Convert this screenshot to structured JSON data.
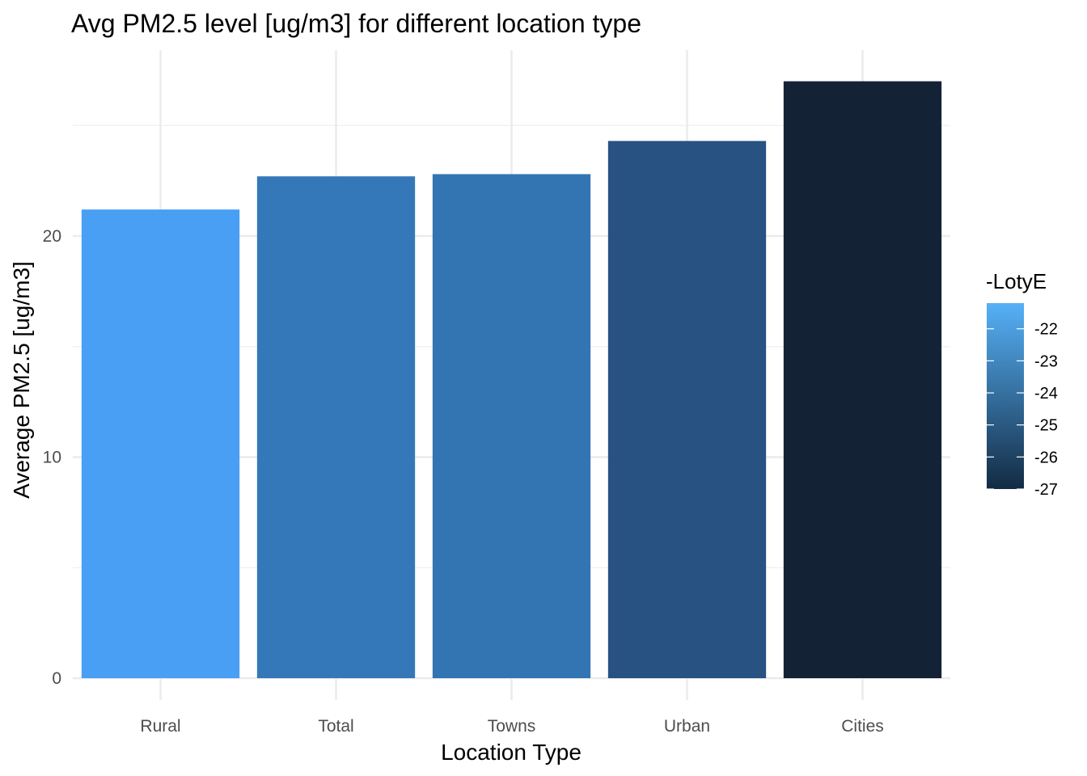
{
  "chart_data": {
    "type": "bar",
    "title": "Avg PM2.5 level [ug/m3] for different location type",
    "xlabel": "Location Type",
    "ylabel": "Average PM2.5 [ug/m3]",
    "categories": [
      "Rural",
      "Total",
      "Towns",
      "Urban",
      "Cities"
    ],
    "values": [
      21.2,
      22.7,
      22.8,
      24.3,
      27.0
    ],
    "ylim": [
      0,
      28.2
    ],
    "yticks": [
      0,
      10,
      20
    ],
    "ytick_labels": [
      "0",
      "10",
      "20"
    ],
    "grid": true,
    "legend": {
      "title": "-LotyE",
      "position": "right",
      "type": "colorbar",
      "range": [
        -27,
        -21.2
      ],
      "ticks": [
        -22,
        -23,
        -24,
        -25,
        -26,
        -27
      ],
      "tick_labels": [
        "-22",
        "-23",
        "-24",
        "-25",
        "-26",
        "-27"
      ],
      "color_low_value": "#132B43",
      "color_high_value": "#56B1F7"
    },
    "bar_colors": [
      "#489ff4",
      "#3578b9",
      "#3375b2",
      "#275282",
      "#132235"
    ],
    "colors": {
      "background": "#ffffff",
      "grid_major": "#ebebeb",
      "grid_minor": "#f2f2f2",
      "tick_text": "#4d4d4d",
      "text": "#000000"
    }
  }
}
